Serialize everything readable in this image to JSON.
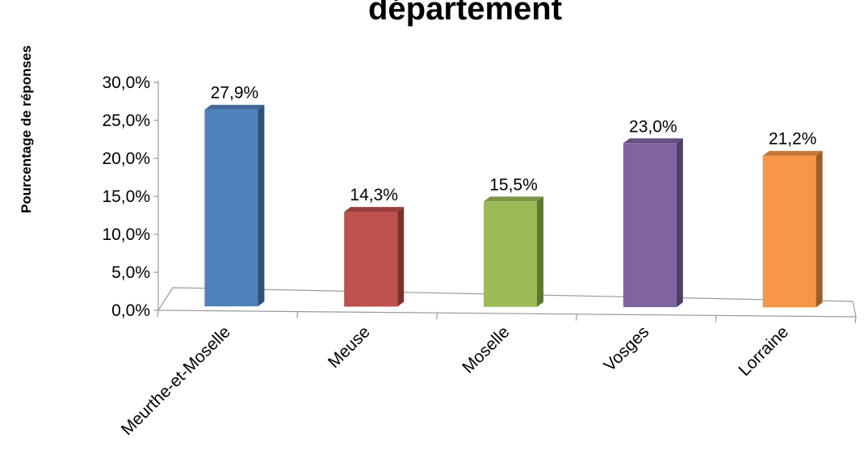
{
  "chart_data": {
    "type": "bar",
    "title": "département",
    "ylabel": "Pourcentage de réponses",
    "xlabel": "",
    "categories": [
      "Meurthe-et-Moselle",
      "Meuse",
      "Moselle",
      "Vosges",
      "Lorraine"
    ],
    "values": [
      27.9,
      14.3,
      15.5,
      23.0,
      21.2
    ],
    "value_labels": [
      "27,9%",
      "14,3%",
      "15,5%",
      "23,0%",
      "21,2%"
    ],
    "ylim": [
      0,
      30
    ],
    "y_ticks": [
      0,
      5,
      10,
      15,
      20,
      25,
      30
    ],
    "y_tick_labels": [
      "0,0%",
      "5,0%",
      "10,0%",
      "15,0%",
      "20,0%",
      "25,0%",
      "30,0%"
    ],
    "colors": [
      "#4F81BD",
      "#C0504D",
      "#9BBB59",
      "#8064A2",
      "#F79646"
    ],
    "style": "3d-column",
    "grid": false,
    "legend": "none"
  }
}
